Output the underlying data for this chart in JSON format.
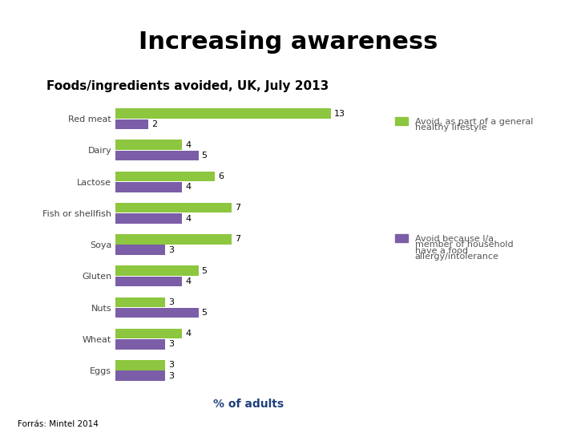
{
  "title": "Increasing awareness",
  "subtitle": "Foods/ingredients avoided, UK, July 2013",
  "source": "Forrás: Mintel 2014",
  "xlabel": "% of adults",
  "categories": [
    "Red meat",
    "Dairy",
    "Lactose",
    "Fish or shellfish",
    "Soya",
    "Gluten",
    "Nuts",
    "Wheat",
    "Eggs"
  ],
  "green_values": [
    13,
    4,
    6,
    7,
    7,
    5,
    3,
    4,
    3
  ],
  "purple_values": [
    2,
    5,
    4,
    4,
    3,
    4,
    5,
    3,
    3
  ],
  "green_color": "#8dc63f",
  "purple_color": "#7b5ea7",
  "legend1_line1": "Avoid, as part of a general",
  "legend1_line2": "healthy lifestyle",
  "legend2_line1": "Avoid because I/a",
  "legend2_line2": "member of household",
  "legend2_line3": "have a food",
  "legend2_line4": "allergy/intolerance",
  "bar_height": 0.32,
  "header_bar_color": "#4d7ab5",
  "title_fontsize": 22,
  "subtitle_fontsize": 11,
  "xlabel_fontsize": 10,
  "xlabel_color": "#1f3f7a",
  "label_fontsize": 8,
  "axis_label_fontsize": 8,
  "legend_fontsize": 8
}
